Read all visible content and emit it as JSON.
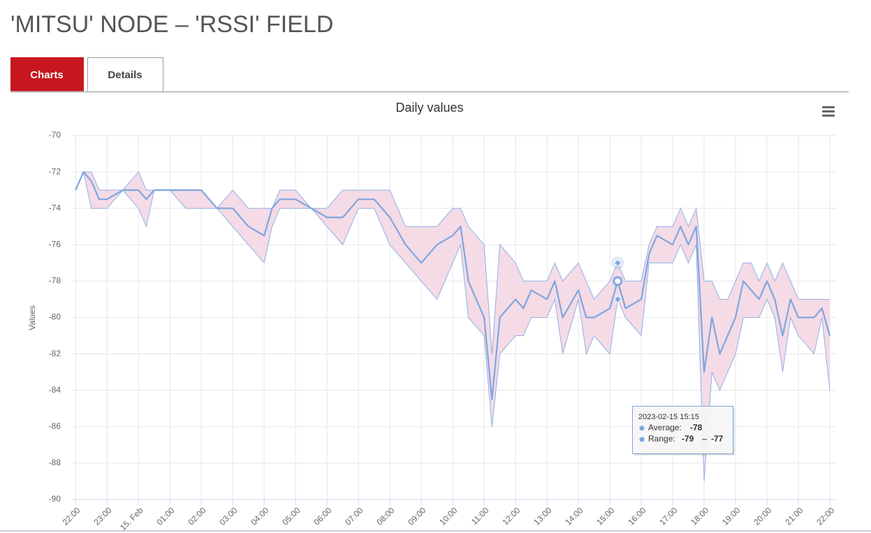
{
  "header": {
    "title": "'MITSU' NODE – 'RSSI' FIELD"
  },
  "tabs": [
    "Charts",
    "Details"
  ],
  "chart_data": {
    "type": "arearange-line",
    "title": "Daily values",
    "y_label": "Values",
    "xlim": [
      "2023-02-14 21:53",
      "2023-02-15 22:12"
    ],
    "xticks": [
      {
        "value": "2023-02-14 22:00",
        "label": "22:00"
      },
      {
        "value": "2023-02-14 23:00",
        "label": "23:00"
      },
      {
        "value": "2023-02-15 00:00",
        "label": "15. Feb"
      },
      {
        "value": "2023-02-15 01:00",
        "label": "01:00"
      },
      {
        "value": "2023-02-15 02:00",
        "label": "02:00"
      },
      {
        "value": "2023-02-15 03:00",
        "label": "03:00"
      },
      {
        "value": "2023-02-15 04:00",
        "label": "04:00"
      },
      {
        "value": "2023-02-15 05:00",
        "label": "05:00"
      },
      {
        "value": "2023-02-15 06:00",
        "label": "06:00"
      },
      {
        "value": "2023-02-15 07:00",
        "label": "07:00"
      },
      {
        "value": "2023-02-15 08:00",
        "label": "08:00"
      },
      {
        "value": "2023-02-15 09:00",
        "label": "09:00"
      },
      {
        "value": "2023-02-15 10:00",
        "label": "10:00"
      },
      {
        "value": "2023-02-15 11:00",
        "label": "11:00"
      },
      {
        "value": "2023-02-15 12:00",
        "label": "12:00"
      },
      {
        "value": "2023-02-15 13:00",
        "label": "13:00"
      },
      {
        "value": "2023-02-15 14:00",
        "label": "14:00"
      },
      {
        "value": "2023-02-15 15:00",
        "label": "15:00"
      },
      {
        "value": "2023-02-15 16:00",
        "label": "16:00"
      },
      {
        "value": "2023-02-15 17:00",
        "label": "17:00"
      },
      {
        "value": "2023-02-15 18:00",
        "label": "18:00"
      },
      {
        "value": "2023-02-15 19:00",
        "label": "19:00"
      },
      {
        "value": "2023-02-15 20:00",
        "label": "20:00"
      },
      {
        "value": "2023-02-15 21:00",
        "label": "21:00"
      },
      {
        "value": "2023-02-15 22:00",
        "label": "22:00"
      }
    ],
    "ylim": [
      -90,
      -70
    ],
    "yticks": [
      -90,
      -88,
      -86,
      -84,
      -82,
      -80,
      -78,
      -76,
      -74,
      -72,
      -70
    ],
    "grid": true,
    "x": [
      "2023-02-14 22:00",
      "2023-02-14 22:15",
      "2023-02-14 22:30",
      "2023-02-14 22:45",
      "2023-02-14 23:00",
      "2023-02-14 23:30",
      "2023-02-15 00:00",
      "2023-02-15 00:15",
      "2023-02-15 00:30",
      "2023-02-15 01:00",
      "2023-02-15 01:30",
      "2023-02-15 02:00",
      "2023-02-15 02:30",
      "2023-02-15 03:00",
      "2023-02-15 03:30",
      "2023-02-15 04:00",
      "2023-02-15 04:15",
      "2023-02-15 04:30",
      "2023-02-15 05:00",
      "2023-02-15 05:30",
      "2023-02-15 06:00",
      "2023-02-15 06:30",
      "2023-02-15 07:00",
      "2023-02-15 07:30",
      "2023-02-15 08:00",
      "2023-02-15 08:30",
      "2023-02-15 09:00",
      "2023-02-15 09:30",
      "2023-02-15 10:00",
      "2023-02-15 10:15",
      "2023-02-15 10:30",
      "2023-02-15 11:00",
      "2023-02-15 11:15",
      "2023-02-15 11:30",
      "2023-02-15 12:00",
      "2023-02-15 12:15",
      "2023-02-15 12:30",
      "2023-02-15 13:00",
      "2023-02-15 13:15",
      "2023-02-15 13:30",
      "2023-02-15 14:00",
      "2023-02-15 14:15",
      "2023-02-15 14:30",
      "2023-02-15 15:00",
      "2023-02-15 15:15",
      "2023-02-15 15:30",
      "2023-02-15 16:00",
      "2023-02-15 16:15",
      "2023-02-15 16:30",
      "2023-02-15 17:00",
      "2023-02-15 17:15",
      "2023-02-15 17:30",
      "2023-02-15 17:45",
      "2023-02-15 18:00",
      "2023-02-15 18:15",
      "2023-02-15 18:30",
      "2023-02-15 18:45",
      "2023-02-15 19:00",
      "2023-02-15 19:15",
      "2023-02-15 19:30",
      "2023-02-15 19:45",
      "2023-02-15 20:00",
      "2023-02-15 20:15",
      "2023-02-15 20:30",
      "2023-02-15 20:45",
      "2023-02-15 21:00",
      "2023-02-15 21:30",
      "2023-02-15 21:45",
      "2023-02-15 22:00"
    ],
    "average": {
      "color": "#7ea6e0",
      "values": [
        -73,
        -72,
        -72.5,
        -73.5,
        -73.5,
        -73,
        -73,
        -73.5,
        -73,
        -73,
        -73,
        -73,
        -74,
        -74,
        -75,
        -75.5,
        -74,
        -73.5,
        -73.5,
        -74,
        -74.5,
        -74.5,
        -73.5,
        -73.5,
        -74.5,
        -76,
        -77,
        -76,
        -75.5,
        -75,
        -78,
        -80,
        -84.5,
        -80,
        -79,
        -79.5,
        -78.5,
        -79,
        -78,
        -80,
        -78.5,
        -80,
        -80,
        -79.5,
        -78,
        -79.5,
        -79,
        -76.5,
        -75.5,
        -76,
        -75,
        -76,
        -75,
        -83,
        -80,
        -82,
        -81,
        -80,
        -78,
        -78.5,
        -79,
        -78,
        -79,
        -81,
        -79,
        -80,
        -80,
        -79.5,
        -81
      ]
    },
    "range": {
      "color": "#f4dbe6",
      "line_color": "#8fb0e6",
      "low": [
        -73,
        -72,
        -74,
        -74,
        -74,
        -73,
        -74,
        -75,
        -73,
        -73,
        -74,
        -74,
        -74,
        -75,
        -76,
        -77,
        -75,
        -74,
        -74,
        -74,
        -75,
        -76,
        -74,
        -74,
        -76,
        -77,
        -78,
        -79,
        -77,
        -76,
        -80,
        -81,
        -86,
        -82,
        -81,
        -81,
        -80,
        -80,
        -79,
        -82,
        -79,
        -82,
        -81,
        -82,
        -79,
        -80,
        -81,
        -77,
        -77,
        -77,
        -76,
        -77,
        -76,
        -89,
        -83,
        -84,
        -83,
        -82,
        -80,
        -80,
        -80,
        -79,
        -80,
        -83,
        -80,
        -81,
        -82,
        -80,
        -84
      ],
      "high": [
        -73,
        -72,
        -72,
        -73,
        -73,
        -73,
        -72,
        -73,
        -73,
        -73,
        -73,
        -73,
        -74,
        -73,
        -74,
        -74,
        -74,
        -73,
        -73,
        -74,
        -74,
        -73,
        -73,
        -73,
        -73,
        -75,
        -75,
        -75,
        -74,
        -74,
        -75,
        -76,
        -82,
        -76,
        -77,
        -78,
        -78,
        -78,
        -77,
        -78,
        -77,
        -78,
        -79,
        -78,
        -77,
        -78,
        -78,
        -76,
        -75,
        -75,
        -74,
        -75,
        -74,
        -78,
        -78,
        -79,
        -79,
        -78,
        -77,
        -77,
        -78,
        -77,
        -78,
        -77,
        -78,
        -79,
        -79,
        -79,
        -79
      ]
    },
    "tooltip": {
      "title": "2023-02-15 15:15",
      "average_label": "Average:",
      "average": -78,
      "range_label": "Range:",
      "range_low": -79,
      "range_high": -77
    }
  }
}
